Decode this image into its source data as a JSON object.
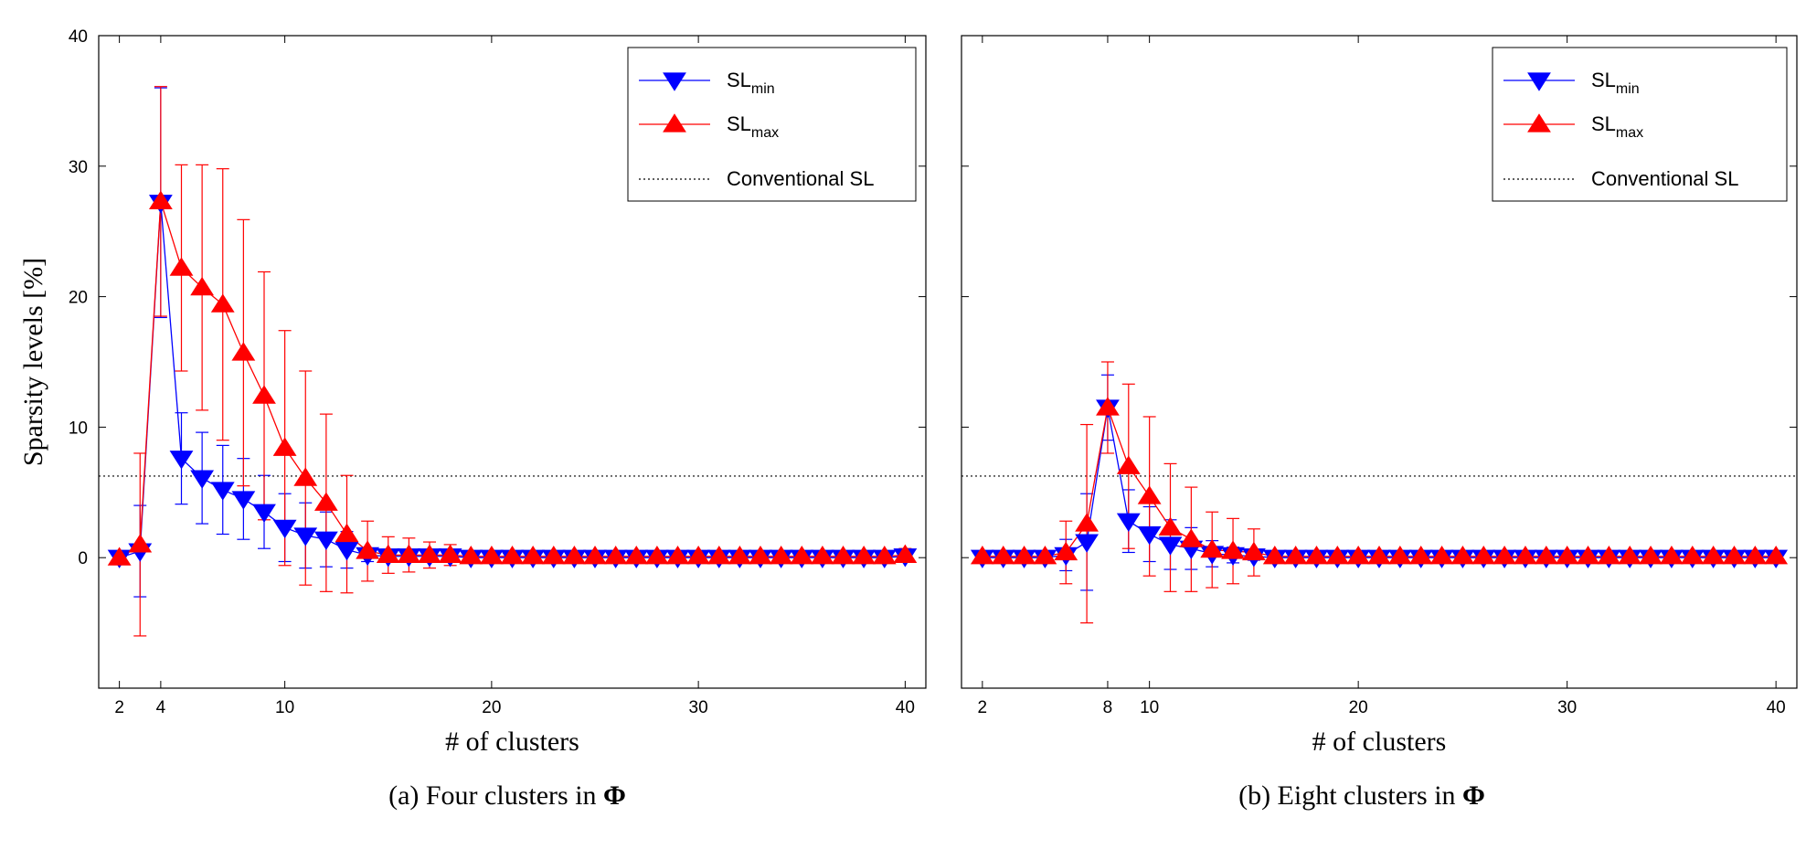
{
  "chart_data": [
    {
      "type": "line",
      "title": "",
      "caption": "(a) Four clusters in ",
      "caption_symbol": "Φ",
      "xlabel": "# of clusters",
      "ylabel": "Sparsity levels [%]",
      "xlim": [
        1,
        41
      ],
      "ylim": [
        -10,
        40
      ],
      "xticks": [
        2,
        4,
        10,
        20,
        30,
        40
      ],
      "yticks": [
        0,
        10,
        20,
        30,
        40
      ],
      "legend_position": "top-right",
      "x": [
        2,
        3,
        4,
        5,
        6,
        7,
        8,
        9,
        10,
        11,
        12,
        13,
        14,
        15,
        16,
        17,
        18,
        19,
        20,
        21,
        22,
        23,
        24,
        25,
        26,
        27,
        28,
        29,
        30,
        31,
        32,
        33,
        34,
        35,
        36,
        37,
        38,
        39,
        40
      ],
      "series": [
        {
          "name": "SL",
          "name_sub": "min",
          "color": "#0000ff",
          "marker": "triangle-down",
          "values": [
            0,
            0.5,
            27.2,
            7.6,
            6.1,
            5.2,
            4.5,
            3.5,
            2.3,
            1.7,
            1.4,
            0.6,
            0.2,
            0.1,
            0.1,
            0.1,
            0.1,
            0,
            0,
            0,
            0,
            0,
            0,
            0,
            0,
            0,
            0,
            0,
            0,
            0,
            0,
            0,
            0,
            0,
            0,
            0,
            0,
            0,
            0.1
          ],
          "err": [
            0,
            3.5,
            8.8,
            3.5,
            3.5,
            3.4,
            3.1,
            2.8,
            2.6,
            2.5,
            2.1,
            1.4,
            0.5,
            0.3,
            0.3,
            0.3,
            0.2,
            0.1,
            0.1,
            0.1,
            0.1,
            0.1,
            0.1,
            0.1,
            0.1,
            0.1,
            0.1,
            0.1,
            0.1,
            0.1,
            0.1,
            0.1,
            0.1,
            0.1,
            0.1,
            0.1,
            0.1,
            0.1,
            0.4
          ]
        },
        {
          "name": "SL",
          "name_sub": "max",
          "color": "#ff0000",
          "marker": "triangle-up",
          "values": [
            0,
            1.0,
            27.3,
            22.2,
            20.7,
            19.4,
            15.7,
            12.4,
            8.4,
            6.1,
            4.2,
            1.8,
            0.5,
            0.2,
            0.2,
            0.2,
            0.2,
            0.1,
            0.1,
            0.1,
            0.1,
            0.1,
            0.1,
            0.1,
            0.1,
            0.1,
            0.1,
            0.1,
            0.1,
            0.1,
            0.1,
            0.1,
            0.1,
            0.1,
            0.1,
            0.1,
            0.1,
            0.1,
            0.2
          ],
          "err": [
            0,
            7.0,
            8.8,
            7.9,
            9.4,
            10.4,
            10.2,
            9.5,
            9.0,
            8.2,
            6.8,
            4.5,
            2.3,
            1.4,
            1.3,
            1.0,
            0.8,
            0.3,
            0.2,
            0.2,
            0.2,
            0.2,
            0.2,
            0.2,
            0.2,
            0.2,
            0.2,
            0.2,
            0.2,
            0.2,
            0.2,
            0.2,
            0.2,
            0.2,
            0.2,
            0.2,
            0.2,
            0.4,
            0.5
          ]
        }
      ],
      "reference_line": {
        "name": "Conventional SL",
        "y": 6.25,
        "style": "dotted",
        "color": "#000000"
      }
    },
    {
      "type": "line",
      "title": "",
      "caption": "(b) Eight clusters in ",
      "caption_symbol": "Φ",
      "xlabel": "# of clusters",
      "ylabel": "",
      "xlim": [
        1,
        41
      ],
      "ylim": [
        -10,
        40
      ],
      "xticks": [
        2,
        8,
        10,
        20,
        30,
        40
      ],
      "yticks": [],
      "legend_position": "top-right",
      "x": [
        2,
        3,
        4,
        5,
        6,
        7,
        8,
        9,
        10,
        11,
        12,
        13,
        14,
        15,
        16,
        17,
        18,
        19,
        20,
        21,
        22,
        23,
        24,
        25,
        26,
        27,
        28,
        29,
        30,
        31,
        32,
        33,
        34,
        35,
        36,
        37,
        38,
        39,
        40
      ],
      "series": [
        {
          "name": "SL",
          "name_sub": "min",
          "color": "#0000ff",
          "marker": "triangle-down",
          "values": [
            0,
            0,
            0,
            0,
            0.2,
            1.2,
            11.5,
            2.8,
            1.8,
            1.0,
            0.7,
            0.3,
            0.2,
            0.1,
            0,
            0,
            0,
            0,
            0,
            0,
            0,
            0,
            0,
            0,
            0,
            0,
            0,
            0,
            0,
            0,
            0,
            0,
            0,
            0,
            0,
            0,
            0,
            0,
            0
          ],
          "err": [
            0,
            0,
            0,
            0.1,
            1.2,
            3.7,
            2.5,
            2.4,
            2.1,
            1.9,
            1.6,
            1.0,
            0.6,
            0.3,
            0.1,
            0.1,
            0.1,
            0,
            0,
            0,
            0,
            0,
            0,
            0,
            0,
            0,
            0,
            0,
            0,
            0,
            0,
            0,
            0,
            0,
            0,
            0,
            0,
            0,
            0
          ]
        },
        {
          "name": "SL",
          "name_sub": "max",
          "color": "#ff0000",
          "marker": "triangle-up",
          "values": [
            0.1,
            0.1,
            0.1,
            0.1,
            0.4,
            2.6,
            11.5,
            7.0,
            4.7,
            2.3,
            1.4,
            0.6,
            0.5,
            0.4,
            0.1,
            0.1,
            0.1,
            0.1,
            0.1,
            0.1,
            0.1,
            0.1,
            0.1,
            0.1,
            0.1,
            0.1,
            0.1,
            0.1,
            0.1,
            0.1,
            0.1,
            0.1,
            0.1,
            0.1,
            0.1,
            0.1,
            0.1,
            0.1,
            0.1
          ],
          "err": [
            0.1,
            0.1,
            0.1,
            0.2,
            2.4,
            7.6,
            3.5,
            6.3,
            6.1,
            4.9,
            4.0,
            2.9,
            2.5,
            1.8,
            0.2,
            0.2,
            0.2,
            0.2,
            0.2,
            0.2,
            0.2,
            0.2,
            0.2,
            0.2,
            0.2,
            0.2,
            0.2,
            0.2,
            0.2,
            0.2,
            0.2,
            0.2,
            0.2,
            0.2,
            0.2,
            0.2,
            0.2,
            0.2,
            0.2
          ]
        }
      ],
      "reference_line": {
        "name": "Conventional SL",
        "y": 6.25,
        "style": "dotted",
        "color": "#000000"
      }
    }
  ]
}
